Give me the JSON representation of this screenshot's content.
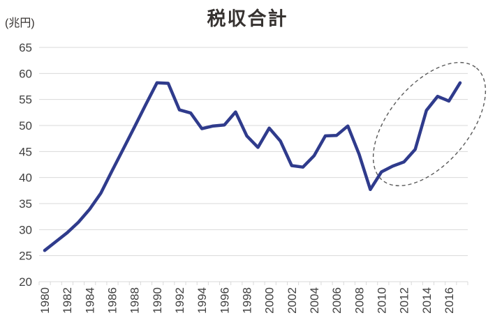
{
  "chart_data": {
    "type": "line",
    "title": "税収合計",
    "unit_label": "(兆円)",
    "x": [
      1980,
      1981,
      1982,
      1983,
      1984,
      1985,
      1986,
      1987,
      1988,
      1989,
      1990,
      1991,
      1992,
      1993,
      1994,
      1995,
      1996,
      1997,
      1998,
      1999,
      2000,
      2001,
      2002,
      2003,
      2004,
      2005,
      2006,
      2007,
      2008,
      2009,
      2010,
      2011,
      2012,
      2013,
      2014,
      2015,
      2016,
      2017
    ],
    "series": [
      {
        "name": "税収合計",
        "values": [
          26.0,
          27.7,
          29.4,
          31.4,
          33.9,
          37.0,
          41.3,
          45.5,
          49.7,
          54.0,
          58.2,
          58.1,
          53.0,
          52.4,
          49.4,
          49.9,
          50.1,
          52.6,
          48.0,
          45.8,
          49.5,
          47.0,
          42.3,
          42.0,
          44.2,
          48.0,
          48.1,
          49.9,
          44.5,
          37.7,
          41.1,
          42.2,
          43.0,
          45.4,
          52.9,
          55.6,
          54.7,
          58.2
        ]
      }
    ],
    "ylim": [
      20,
      65
    ],
    "y_ticks": [
      65,
      60,
      55,
      50,
      45,
      40,
      35,
      30,
      25,
      20
    ],
    "x_tick_labels": [
      "1980",
      "1982",
      "1984",
      "1986",
      "1988",
      "1990",
      "1992",
      "1994",
      "1996",
      "1998",
      "2000",
      "2002",
      "2004",
      "2006",
      "2008",
      "2010",
      "2012",
      "2014",
      "2016"
    ],
    "x_label_rotation_deg": -90,
    "grid": true,
    "legend": "none",
    "line_color": "#2F3B8C",
    "gridline_color": "#d9d9d9",
    "label_color": "#404040",
    "annotation": {
      "shape": "ellipse",
      "style": "dashed",
      "stroke_color": "#595959",
      "highlights_years": [
        2009,
        2017
      ],
      "meaning": "circle around the recovery of tax revenue from 2009 through 2017"
    }
  }
}
